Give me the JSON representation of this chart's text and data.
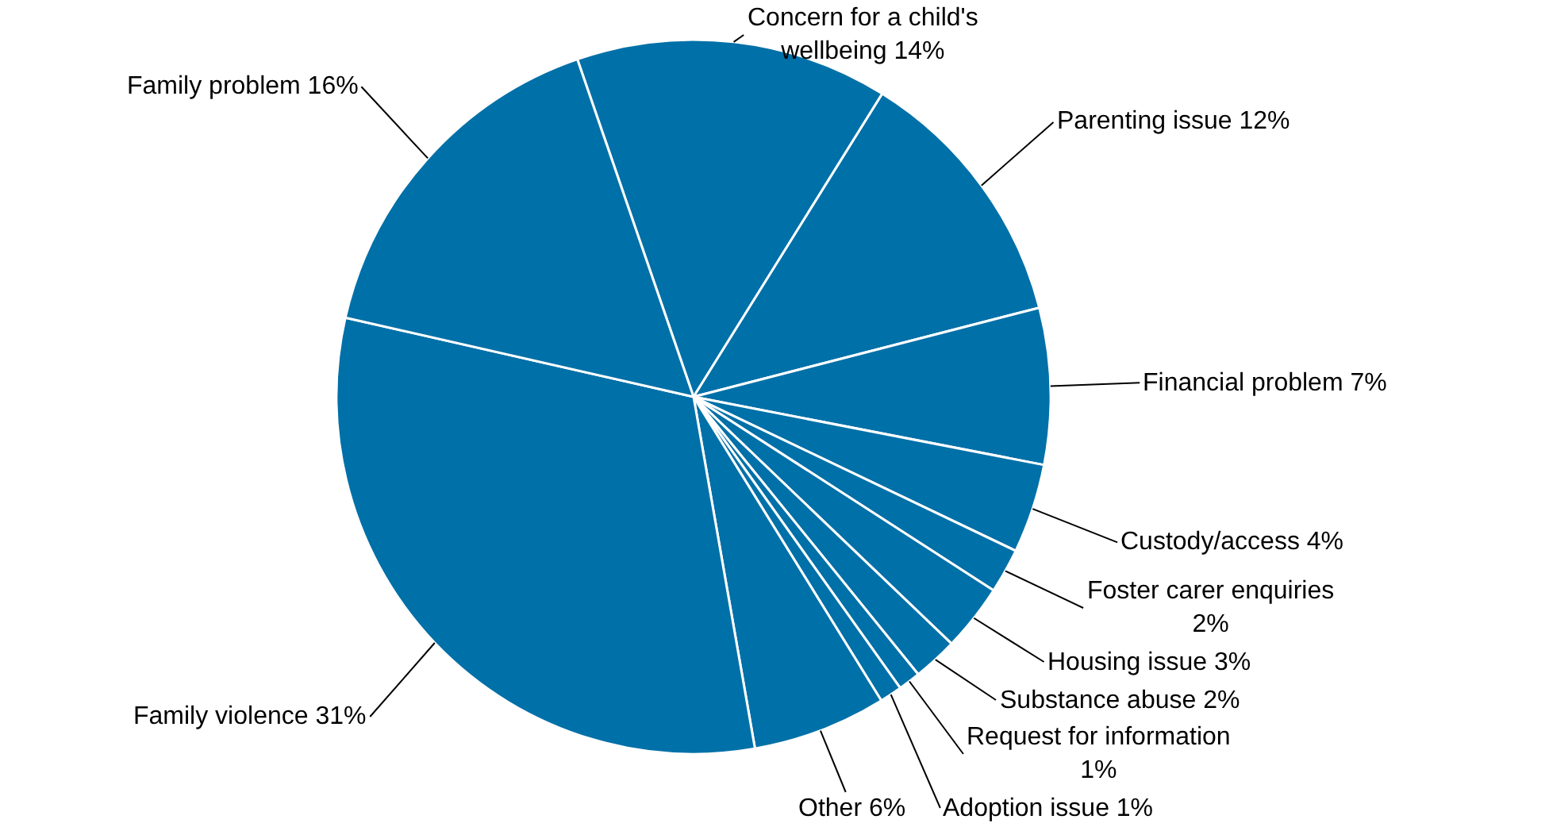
{
  "chart_data": {
    "type": "pie",
    "categories": [
      "Concern for a child's wellbeing",
      "Parenting issue",
      "Financial problem",
      "Custody/access",
      "Foster carer enquiries",
      "Housing issue",
      "Substance abuse",
      "Request for information",
      "Adoption issue",
      "Other",
      "Family violence",
      "Family problem"
    ],
    "values": [
      14,
      12,
      7,
      4,
      2,
      3,
      2,
      1,
      1,
      6,
      31,
      16
    ],
    "value_labels": [
      "14%",
      "12%",
      "7%",
      "4%",
      "2%",
      "3%",
      "2%",
      "1%",
      "1%",
      "6%",
      "31%",
      "16%"
    ],
    "colors": [
      "#0070a8",
      "#0070a8",
      "#0070a8",
      "#0070a8",
      "#0070a8",
      "#0070a8",
      "#0070a8",
      "#0070a8",
      "#0070a8",
      "#0070a8",
      "#0070a8",
      "#0070a8"
    ],
    "legend": false
  }
}
